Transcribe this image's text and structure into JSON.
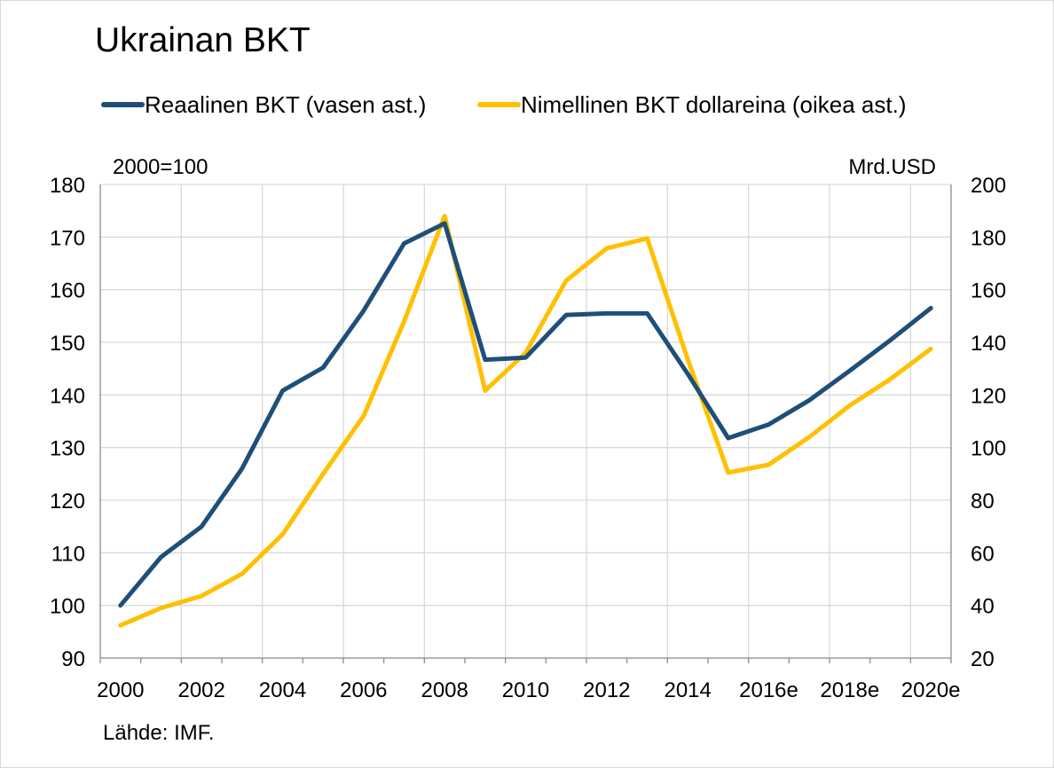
{
  "chart_data": {
    "type": "line",
    "title": "Ukrainan BKT",
    "left_axis_unit": "2000=100",
    "right_axis_unit": "Mrd.USD",
    "source": "Lähde: IMF.",
    "legend_position": "top",
    "grid": true,
    "x": [
      "2000",
      "2001",
      "2002",
      "2003",
      "2004",
      "2005",
      "2006",
      "2007",
      "2008",
      "2009",
      "2010",
      "2011",
      "2012",
      "2013",
      "2014",
      "2015",
      "2016e",
      "2017e",
      "2018e",
      "2019e",
      "2020e"
    ],
    "x_tick_labels": [
      "2000",
      "",
      "2002",
      "",
      "2004",
      "",
      "2006",
      "",
      "2008",
      "",
      "2010",
      "",
      "2012",
      "",
      "2014",
      "",
      "2016e",
      "",
      "2018e",
      "",
      "2020e"
    ],
    "y_left": {
      "min": 90,
      "max": 180,
      "ticks": [
        "90",
        "100",
        "110",
        "120",
        "130",
        "140",
        "150",
        "160",
        "170",
        "180"
      ]
    },
    "y_right": {
      "min": 20,
      "max": 200,
      "ticks": [
        "20",
        "40",
        "60",
        "80",
        "100",
        "120",
        "140",
        "160",
        "180",
        "200"
      ]
    },
    "series": [
      {
        "name": "Reaalinen BKT (vasen ast.)",
        "axis": "left",
        "color": "#1f4e79",
        "values": [
          100,
          109.2,
          115,
          126,
          140.8,
          145.2,
          156,
          168.8,
          172.6,
          146.7,
          147.1,
          155.2,
          155.5,
          155.5,
          144,
          131.8,
          134.4,
          139,
          144.6,
          150.4,
          156.5
        ]
      },
      {
        "name": "Nimellinen BKT dollareina (oikea ast.)",
        "axis": "right",
        "color": "#ffc000",
        "values": [
          32.4,
          39,
          43.6,
          52,
          67,
          90,
          112,
          148,
          188,
          121.6,
          136,
          163.5,
          175.7,
          179.5,
          133.5,
          90.5,
          93.5,
          104,
          116,
          126,
          137.5
        ]
      }
    ]
  }
}
